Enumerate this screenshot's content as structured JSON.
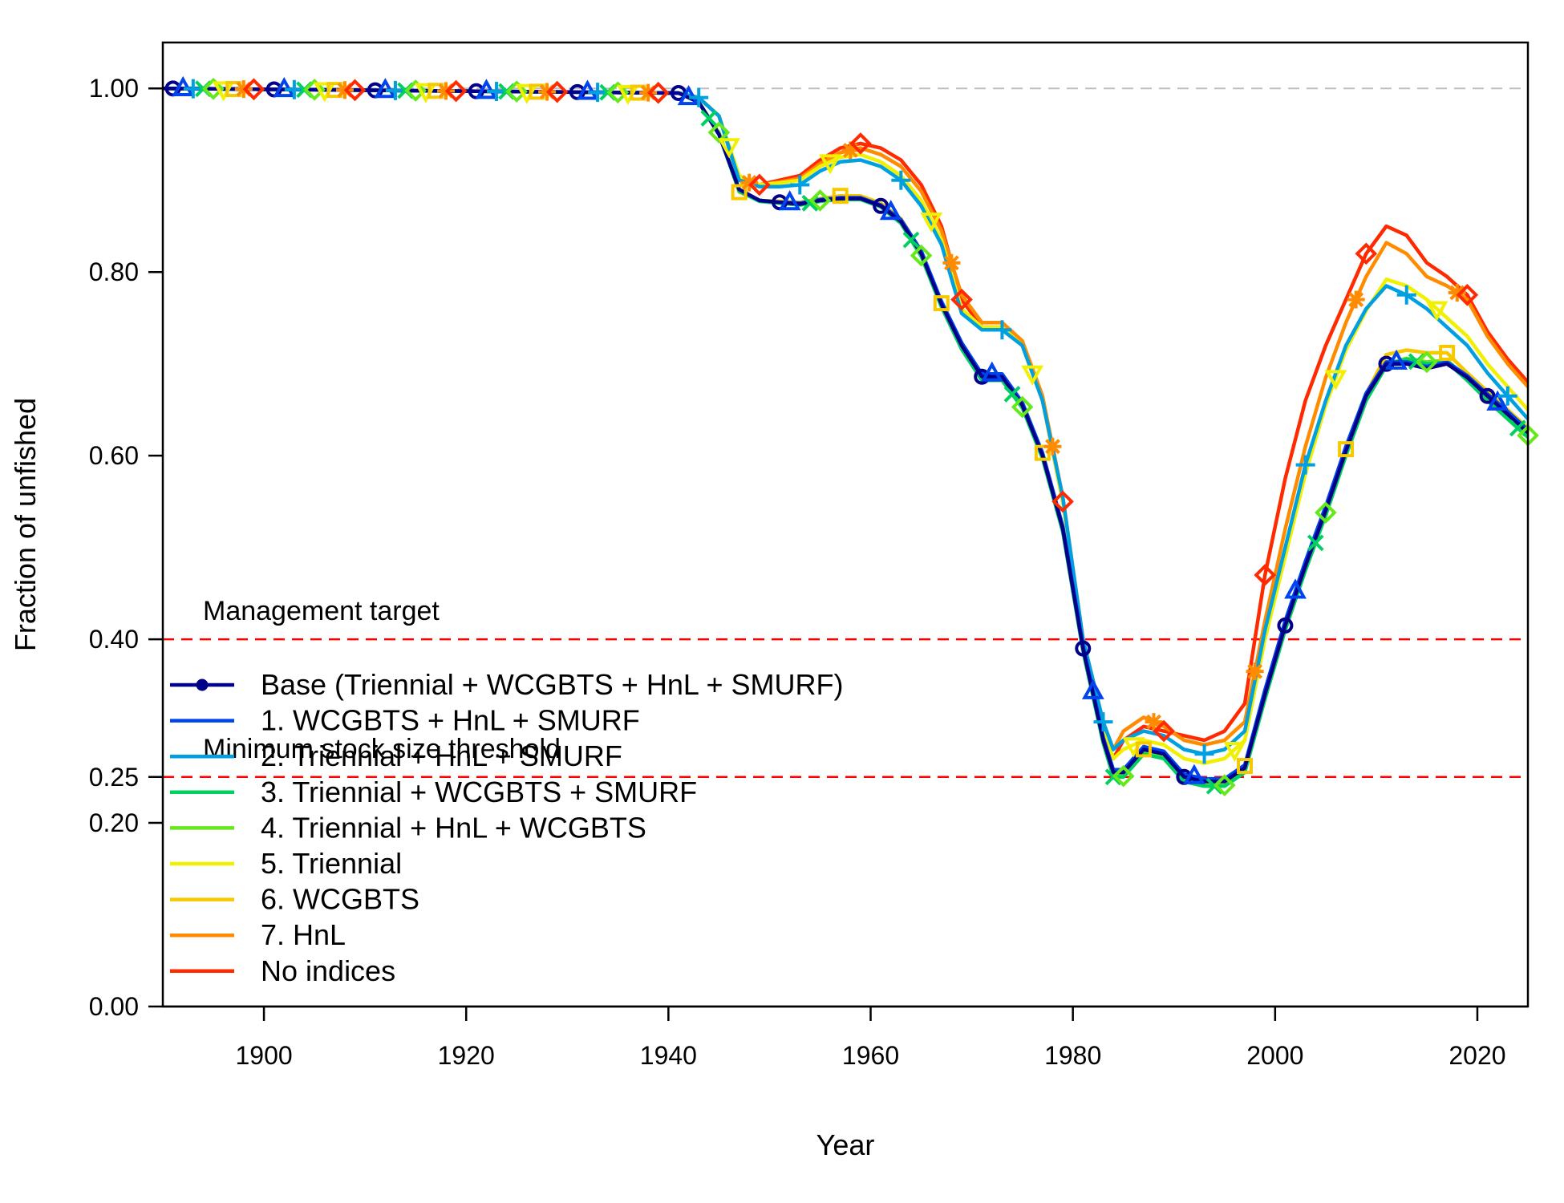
{
  "chart_data": {
    "type": "line",
    "xlabel": "Year",
    "ylabel": "Fraction of unfished",
    "xlim": [
      1890,
      2025
    ],
    "ylim": [
      0,
      1.05
    ],
    "x_ticks": [
      1900,
      1920,
      1940,
      1960,
      1980,
      2000,
      2020
    ],
    "y_ticks": [
      {
        "value": 0.0,
        "label": "0.00"
      },
      {
        "value": 0.2,
        "label": "0.20"
      },
      {
        "value": 0.25,
        "label": "0.25"
      },
      {
        "value": 0.4,
        "label": "0.40"
      },
      {
        "value": 0.6,
        "label": "0.60"
      },
      {
        "value": 0.8,
        "label": "0.80"
      },
      {
        "value": 1.0,
        "label": "1.00"
      }
    ],
    "grid": false,
    "legend_position": "bottom-left",
    "reference_lines": [
      {
        "value": 1.0,
        "label": "",
        "color": "#bebebe"
      },
      {
        "value": 0.4,
        "label": "Management target",
        "color": "#ff0000"
      },
      {
        "value": 0.25,
        "label": "Minimum stock size threshold",
        "color": "#ff0000"
      }
    ],
    "series": [
      {
        "name": "Base (Triennial + WCGBTS + HnL + SMURF)",
        "color": "#00008b",
        "marker": "circle",
        "x": [
          1890,
          1941,
          1943,
          1945,
          1947,
          1949,
          1951,
          1953,
          1955,
          1957,
          1959,
          1961,
          1963,
          1965,
          1967,
          1969,
          1971,
          1973,
          1975,
          1977,
          1979,
          1981,
          1983,
          1984,
          1985,
          1987,
          1989,
          1991,
          1993,
          1995,
          1997,
          1999,
          2001,
          2003,
          2005,
          2007,
          2009,
          2011,
          2013,
          2015,
          2017,
          2019,
          2021,
          2023,
          2025
        ],
        "y": [
          1.0,
          0.995,
          0.985,
          0.95,
          0.89,
          0.878,
          0.876,
          0.874,
          0.878,
          0.88,
          0.88,
          0.872,
          0.855,
          0.82,
          0.765,
          0.72,
          0.686,
          0.686,
          0.655,
          0.6,
          0.52,
          0.39,
          0.29,
          0.255,
          0.255,
          0.28,
          0.275,
          0.25,
          0.245,
          0.245,
          0.26,
          0.34,
          0.415,
          0.48,
          0.54,
          0.605,
          0.665,
          0.7,
          0.7,
          0.695,
          0.7,
          0.685,
          0.665,
          0.645,
          0.625
        ],
        "marker_years": [
          1891,
          1901,
          1911,
          1921,
          1931,
          1941,
          1951,
          1961,
          1971,
          1981,
          1991,
          2001,
          2011,
          2021
        ]
      },
      {
        "name": "1. WCGBTS + HnL + SMURF",
        "color": "#0044ee",
        "marker": "triangle",
        "x": [
          1890,
          1941,
          1943,
          1945,
          1947,
          1949,
          1951,
          1953,
          1955,
          1957,
          1959,
          1961,
          1963,
          1965,
          1967,
          1969,
          1971,
          1973,
          1975,
          1977,
          1979,
          1981,
          1983,
          1984,
          1985,
          1987,
          1989,
          1991,
          1993,
          1995,
          1997,
          1999,
          2001,
          2003,
          2005,
          2007,
          2009,
          2011,
          2013,
          2015,
          2017,
          2019,
          2021,
          2023,
          2025
        ],
        "y": [
          1.0,
          0.995,
          0.985,
          0.95,
          0.89,
          0.878,
          0.876,
          0.875,
          0.879,
          0.881,
          0.881,
          0.873,
          0.857,
          0.823,
          0.768,
          0.723,
          0.689,
          0.689,
          0.658,
          0.603,
          0.523,
          0.393,
          0.293,
          0.258,
          0.258,
          0.283,
          0.278,
          0.253,
          0.248,
          0.248,
          0.263,
          0.345,
          0.42,
          0.485,
          0.545,
          0.61,
          0.668,
          0.702,
          0.702,
          0.697,
          0.702,
          0.687,
          0.667,
          0.648,
          0.628
        ],
        "marker_years": [
          1892,
          1902,
          1912,
          1922,
          1932,
          1942,
          1952,
          1962,
          1972,
          1982,
          1992,
          2002,
          2012,
          2022
        ]
      },
      {
        "name": "2. Triennial + HnL + SMURF",
        "color": "#00a0e0",
        "marker": "plus",
        "x": [
          1890,
          1941,
          1943,
          1945,
          1947,
          1949,
          1951,
          1953,
          1955,
          1957,
          1959,
          1961,
          1963,
          1965,
          1967,
          1969,
          1971,
          1973,
          1975,
          1977,
          1979,
          1981,
          1983,
          1984,
          1985,
          1987,
          1989,
          1991,
          1993,
          1995,
          1997,
          1999,
          2001,
          2003,
          2005,
          2007,
          2009,
          2011,
          2013,
          2015,
          2017,
          2019,
          2021,
          2023,
          2025
        ],
        "y": [
          1.0,
          0.995,
          0.99,
          0.97,
          0.9,
          0.893,
          0.893,
          0.895,
          0.91,
          0.92,
          0.922,
          0.915,
          0.9,
          0.872,
          0.83,
          0.755,
          0.737,
          0.737,
          0.72,
          0.66,
          0.555,
          0.4,
          0.31,
          0.28,
          0.29,
          0.3,
          0.295,
          0.28,
          0.275,
          0.28,
          0.3,
          0.41,
          0.5,
          0.59,
          0.66,
          0.72,
          0.76,
          0.785,
          0.775,
          0.76,
          0.74,
          0.72,
          0.69,
          0.665,
          0.64
        ],
        "marker_years": [
          1893,
          1903,
          1913,
          1923,
          1933,
          1943,
          1953,
          1963,
          1973,
          1983,
          1993,
          2003,
          2013,
          2023
        ]
      },
      {
        "name": "3. Triennial + WCGBTS + SMURF",
        "color": "#00d060",
        "marker": "cross",
        "x": [
          1890,
          1941,
          1943,
          1945,
          1947,
          1949,
          1951,
          1953,
          1955,
          1957,
          1959,
          1961,
          1963,
          1965,
          1967,
          1969,
          1971,
          1973,
          1975,
          1977,
          1979,
          1981,
          1983,
          1984,
          1985,
          1987,
          1989,
          1991,
          1993,
          1995,
          1997,
          1999,
          2001,
          2003,
          2005,
          2007,
          2009,
          2011,
          2013,
          2015,
          2017,
          2019,
          2021,
          2023,
          2025
        ],
        "y": [
          1.0,
          0.995,
          0.985,
          0.95,
          0.888,
          0.877,
          0.875,
          0.873,
          0.877,
          0.879,
          0.879,
          0.871,
          0.853,
          0.817,
          0.762,
          0.716,
          0.682,
          0.682,
          0.652,
          0.597,
          0.517,
          0.387,
          0.287,
          0.25,
          0.25,
          0.275,
          0.27,
          0.245,
          0.24,
          0.24,
          0.255,
          0.335,
          0.41,
          0.475,
          0.535,
          0.6,
          0.66,
          0.698,
          0.705,
          0.7,
          0.702,
          0.682,
          0.66,
          0.64,
          0.62
        ],
        "marker_years": [
          1894,
          1904,
          1914,
          1924,
          1934,
          1944,
          1954,
          1964,
          1974,
          1984,
          1994,
          2004,
          2014,
          2024
        ]
      },
      {
        "name": "4. Triennial + HnL + WCGBTS",
        "color": "#66e81a",
        "marker": "diamond",
        "x": [
          1890,
          1941,
          1943,
          1945,
          1947,
          1949,
          1951,
          1953,
          1955,
          1957,
          1959,
          1961,
          1963,
          1965,
          1967,
          1969,
          1971,
          1973,
          1975,
          1977,
          1979,
          1981,
          1983,
          1984,
          1985,
          1987,
          1989,
          1991,
          1993,
          1995,
          1997,
          1999,
          2001,
          2003,
          2005,
          2007,
          2009,
          2011,
          2013,
          2015,
          2017,
          2019,
          2021,
          2023,
          2025
        ],
        "y": [
          1.0,
          0.995,
          0.985,
          0.952,
          0.889,
          0.878,
          0.876,
          0.874,
          0.878,
          0.88,
          0.88,
          0.872,
          0.854,
          0.818,
          0.763,
          0.717,
          0.683,
          0.683,
          0.653,
          0.598,
          0.518,
          0.388,
          0.288,
          0.251,
          0.251,
          0.276,
          0.271,
          0.246,
          0.241,
          0.241,
          0.256,
          0.337,
          0.412,
          0.478,
          0.538,
          0.603,
          0.663,
          0.7,
          0.706,
          0.702,
          0.704,
          0.684,
          0.662,
          0.642,
          0.622
        ],
        "marker_years": [
          1895,
          1905,
          1915,
          1925,
          1935,
          1945,
          1955,
          1965,
          1975,
          1985,
          1995,
          2005,
          2015,
          2025
        ]
      },
      {
        "name": "5. Triennial",
        "color": "#f0f000",
        "marker": "triangle-down",
        "x": [
          1890,
          1941,
          1943,
          1945,
          1947,
          1949,
          1951,
          1953,
          1955,
          1957,
          1959,
          1961,
          1963,
          1965,
          1967,
          1969,
          1971,
          1973,
          1975,
          1977,
          1979,
          1981,
          1983,
          1984,
          1985,
          1987,
          1989,
          1991,
          1993,
          1995,
          1997,
          1999,
          2001,
          2003,
          2005,
          2007,
          2009,
          2011,
          2013,
          2015,
          2017,
          2019,
          2021,
          2023,
          2025
        ],
        "y": [
          1.0,
          0.995,
          0.99,
          0.97,
          0.905,
          0.895,
          0.897,
          0.9,
          0.915,
          0.925,
          0.928,
          0.92,
          0.905,
          0.878,
          0.835,
          0.76,
          0.74,
          0.74,
          0.72,
          0.66,
          0.55,
          0.395,
          0.305,
          0.27,
          0.28,
          0.29,
          0.285,
          0.27,
          0.265,
          0.27,
          0.29,
          0.4,
          0.49,
          0.58,
          0.655,
          0.715,
          0.758,
          0.792,
          0.785,
          0.77,
          0.75,
          0.73,
          0.7,
          0.675,
          0.65
        ],
        "marker_years": [
          1896,
          1906,
          1916,
          1926,
          1936,
          1946,
          1956,
          1966,
          1976,
          1986,
          1996,
          2006,
          2016
        ]
      },
      {
        "name": "6. WCGBTS",
        "color": "#f5c800",
        "marker": "square",
        "x": [
          1890,
          1941,
          1943,
          1945,
          1947,
          1949,
          1951,
          1953,
          1955,
          1957,
          1959,
          1961,
          1963,
          1965,
          1967,
          1969,
          1971,
          1973,
          1975,
          1977,
          1979,
          1981,
          1983,
          1984,
          1985,
          1987,
          1989,
          1991,
          1993,
          1995,
          1997,
          1999,
          2001,
          2003,
          2005,
          2007,
          2009,
          2011,
          2013,
          2015,
          2017,
          2019,
          2021,
          2023,
          2025
        ],
        "y": [
          1.0,
          0.995,
          0.985,
          0.951,
          0.887,
          0.878,
          0.877,
          0.876,
          0.88,
          0.883,
          0.883,
          0.875,
          0.858,
          0.823,
          0.766,
          0.72,
          0.686,
          0.686,
          0.656,
          0.603,
          0.52,
          0.39,
          0.29,
          0.254,
          0.254,
          0.28,
          0.275,
          0.249,
          0.245,
          0.247,
          0.262,
          0.342,
          0.417,
          0.483,
          0.543,
          0.607,
          0.667,
          0.71,
          0.715,
          0.712,
          0.712,
          0.69,
          0.67,
          0.65,
          0.63
        ],
        "marker_years": [
          1897,
          1907,
          1917,
          1927,
          1937,
          1947,
          1957,
          1967,
          1977,
          1987,
          1997,
          2007,
          2017
        ]
      },
      {
        "name": "7. HnL",
        "color": "#ff8c00",
        "marker": "asterisk",
        "x": [
          1890,
          1941,
          1943,
          1945,
          1947,
          1949,
          1951,
          1953,
          1955,
          1957,
          1959,
          1961,
          1963,
          1965,
          1967,
          1969,
          1971,
          1973,
          1975,
          1977,
          1979,
          1981,
          1983,
          1984,
          1985,
          1987,
          1989,
          1991,
          1993,
          1995,
          1997,
          1999,
          2001,
          2003,
          2005,
          2007,
          2009,
          2011,
          2013,
          2015,
          2017,
          2019,
          2021,
          2023,
          2025
        ],
        "y": [
          1.0,
          0.995,
          0.99,
          0.97,
          0.9,
          0.895,
          0.898,
          0.902,
          0.918,
          0.93,
          0.935,
          0.928,
          0.915,
          0.888,
          0.845,
          0.775,
          0.745,
          0.745,
          0.725,
          0.665,
          0.555,
          0.4,
          0.31,
          0.28,
          0.3,
          0.315,
          0.305,
          0.29,
          0.285,
          0.29,
          0.31,
          0.42,
          0.52,
          0.61,
          0.685,
          0.745,
          0.795,
          0.832,
          0.82,
          0.795,
          0.785,
          0.77,
          0.73,
          0.7,
          0.675
        ],
        "marker_years": [
          1898,
          1908,
          1918,
          1928,
          1938,
          1948,
          1958,
          1968,
          1978,
          1988,
          1998,
          2008,
          2018
        ]
      },
      {
        "name": "No indices",
        "color": "#ff2a00",
        "marker": "diamond",
        "x": [
          1890,
          1941,
          1943,
          1945,
          1947,
          1949,
          1951,
          1953,
          1955,
          1957,
          1959,
          1961,
          1963,
          1965,
          1967,
          1969,
          1971,
          1973,
          1975,
          1977,
          1979,
          1981,
          1983,
          1984,
          1985,
          1987,
          1989,
          1991,
          1993,
          1995,
          1997,
          1999,
          2001,
          2003,
          2005,
          2007,
          2009,
          2011,
          2013,
          2015,
          2017,
          2019,
          2021,
          2023,
          2025
        ],
        "y": [
          1.0,
          0.995,
          0.99,
          0.97,
          0.9,
          0.895,
          0.9,
          0.905,
          0.922,
          0.935,
          0.94,
          0.935,
          0.922,
          0.895,
          0.85,
          0.77,
          0.74,
          0.74,
          0.72,
          0.66,
          0.55,
          0.4,
          0.3,
          0.27,
          0.29,
          0.305,
          0.3,
          0.295,
          0.29,
          0.3,
          0.33,
          0.47,
          0.575,
          0.66,
          0.72,
          0.77,
          0.82,
          0.85,
          0.84,
          0.81,
          0.795,
          0.775,
          0.735,
          0.705,
          0.68
        ],
        "marker_years": [
          1899,
          1909,
          1919,
          1929,
          1939,
          1949,
          1959,
          1969,
          1979,
          1989,
          1999,
          2009,
          2019
        ]
      }
    ]
  }
}
